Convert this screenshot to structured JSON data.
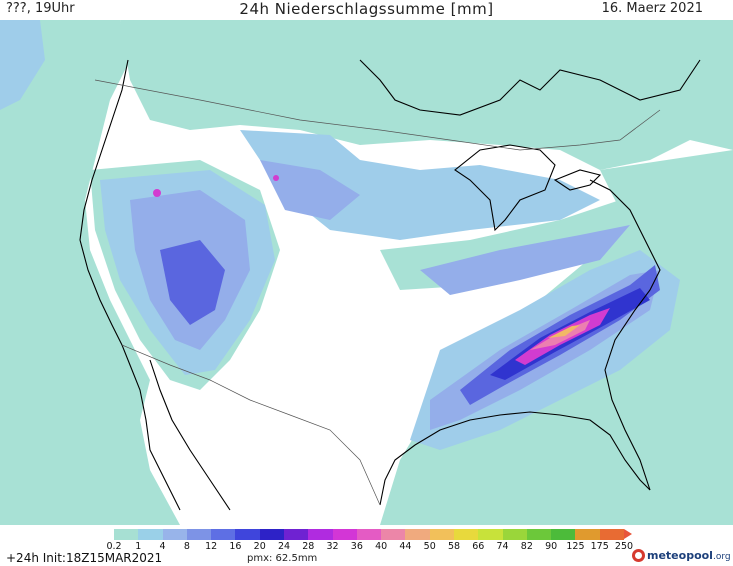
{
  "header": {
    "left": "???, 19Uhr",
    "title": "24h Niederschlagssumme [mm]",
    "date": "16. Maerz 2021"
  },
  "legend": {
    "ticks": [
      "0.2",
      "1",
      "4",
      "8",
      "12",
      "16",
      "20",
      "24",
      "28",
      "32",
      "36",
      "40",
      "44",
      "50",
      "58",
      "66",
      "74",
      "82",
      "90",
      "125",
      "175",
      "250"
    ],
    "colors": [
      "#a7e0d3",
      "#9ad0e8",
      "#98b4ea",
      "#7d93e6",
      "#5e6fe4",
      "#3f45dc",
      "#2d22c7",
      "#6f22d2",
      "#b02be0",
      "#d336d6",
      "#e45bc4",
      "#ec86a8",
      "#f0aa7e",
      "#f2c05a",
      "#e8d93c",
      "#c8e23a",
      "#9ad63a",
      "#6cc83a",
      "#4cbb3a",
      "#e09a2e",
      "#e86b33"
    ],
    "arrow_color": "#e8553a"
  },
  "footer": {
    "init": "+24h Init:18Z15MAR2021",
    "pmx": "pmx: 62.5mm",
    "logo_main": "meteopool",
    "logo_suffix": ".org"
  },
  "map": {
    "background_teal": "#a8e1d5",
    "light_blue": "#9fcdea",
    "mid_blue": "#94aeea",
    "dark_blue": "#5a66df",
    "deep_blue": "#3034cf",
    "magenta": "#d23cd0",
    "pink": "#ec7fb0",
    "orange": "#f2b866"
  }
}
